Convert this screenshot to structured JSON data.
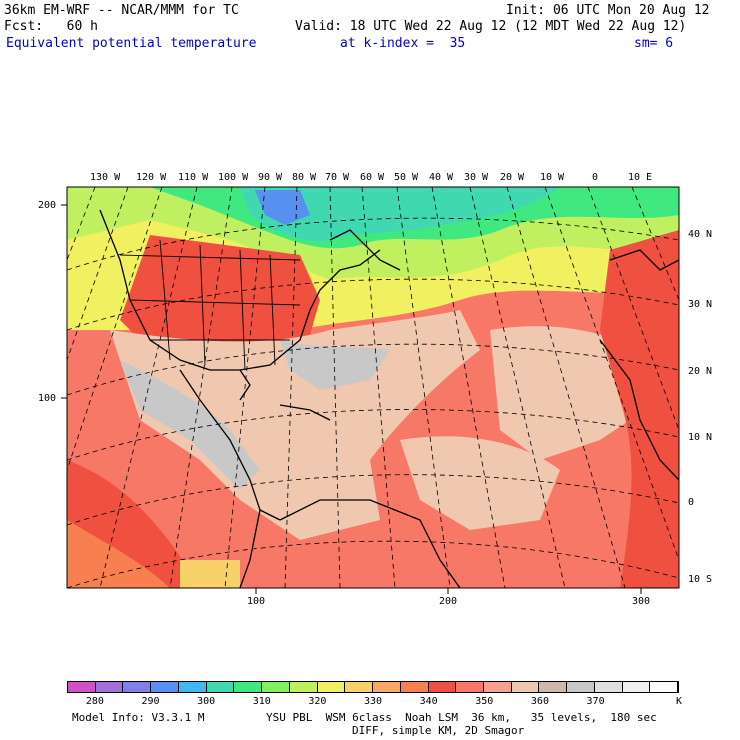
{
  "header": {
    "line1_left": "36km EM-WRF -- NCAR/MMM for TC",
    "line1_right": "Init: 06 UTC Mon 20 Aug 12",
    "line2_left": "Fcst:   60 h",
    "line2_right": "Valid: 18 UTC Wed 22 Aug 12 (12 MDT Wed 22 Aug 12)",
    "line3_field": "Equivalent potential temperature",
    "line3_kindex": "at k-index =  35",
    "line3_sm": "sm= 6"
  },
  "map": {
    "lon_labels": [
      "130 W",
      "120 W",
      "110 W",
      "100 W",
      "90 W",
      "80 W",
      "70 W",
      "60 W",
      "50 W",
      "40 W",
      "30 W",
      "20 W",
      "10 W",
      "0",
      "10 E"
    ],
    "lat_labels": [
      "40 N",
      "30 N",
      "20 N",
      "10 N",
      "0",
      "10 S"
    ],
    "left_grid_labels": [
      "200",
      "100"
    ],
    "bottom_grid_labels": [
      "100",
      "200",
      "300"
    ]
  },
  "colorbar": {
    "colors": [
      "#d050c8",
      "#a070d8",
      "#8080e8",
      "#5890f0",
      "#40b8f0",
      "#40d8b0",
      "#40e880",
      "#80f060",
      "#c0f060",
      "#f0f060",
      "#f8d068",
      "#f8a860",
      "#f88050",
      "#f05040",
      "#f87868",
      "#f8a090",
      "#f0c8b0",
      "#d0b8a8",
      "#c8c8c8",
      "#e0e0e0",
      "#f0f0f0",
      "#ffffff"
    ],
    "tick_labels": [
      "280",
      "290",
      "300",
      "310",
      "320",
      "330",
      "340",
      "350",
      "360",
      "370"
    ],
    "unit": "K"
  },
  "footer": {
    "line1_left": "Model Info: V3.3.1 M",
    "line1_right": "YSU PBL  WSM 6class  Noah LSM  36 km,   35 levels,  180 sec",
    "line2": "DIFF, simple KM, 2D Smagor"
  }
}
